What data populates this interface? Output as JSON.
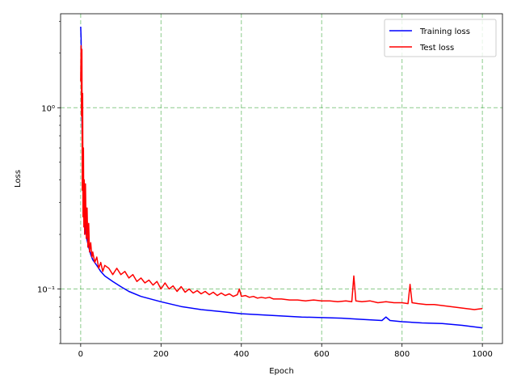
{
  "chart_data": {
    "type": "line",
    "title": "",
    "xlabel": "Epoch",
    "ylabel": "Loss",
    "xlim": [
      -50,
      1050
    ],
    "ylim": [
      0.05,
      3.3
    ],
    "yscale": "log",
    "x_ticks": [
      0,
      200,
      400,
      600,
      800,
      1000
    ],
    "x_tick_labels": [
      "0",
      "200",
      "400",
      "600",
      "800",
      "1000"
    ],
    "y_ticks": [
      0.1,
      1.0
    ],
    "y_tick_labels": [
      "10⁻¹",
      "10⁰"
    ],
    "grid": true,
    "grid_color": "#2ca02c",
    "legend_position": "top-right",
    "series": [
      {
        "name": "Training loss",
        "color": "#0000ff",
        "x": [
          0,
          1,
          2,
          3,
          4,
          5,
          6,
          8,
          10,
          12,
          15,
          20,
          25,
          30,
          40,
          50,
          60,
          80,
          100,
          120,
          150,
          200,
          250,
          300,
          350,
          400,
          450,
          500,
          550,
          600,
          650,
          700,
          750,
          760,
          770,
          800,
          850,
          900,
          950,
          1000
        ],
        "values": [
          2.8,
          2.4,
          1.4,
          0.9,
          0.6,
          0.45,
          0.35,
          0.28,
          0.24,
          0.21,
          0.19,
          0.17,
          0.155,
          0.145,
          0.135,
          0.125,
          0.118,
          0.11,
          0.103,
          0.097,
          0.091,
          0.085,
          0.08,
          0.077,
          0.075,
          0.073,
          0.072,
          0.071,
          0.07,
          0.0695,
          0.069,
          0.068,
          0.067,
          0.07,
          0.067,
          0.066,
          0.065,
          0.0645,
          0.063,
          0.061
        ]
      },
      {
        "name": "Test loss",
        "color": "#ff0000",
        "x": [
          0,
          1,
          2,
          3,
          4,
          5,
          6,
          7,
          8,
          9,
          10,
          12,
          14,
          16,
          18,
          20,
          22,
          25,
          28,
          30,
          35,
          40,
          45,
          50,
          55,
          60,
          70,
          80,
          90,
          100,
          110,
          120,
          130,
          140,
          150,
          160,
          170,
          180,
          190,
          200,
          210,
          220,
          230,
          240,
          250,
          260,
          270,
          280,
          290,
          300,
          310,
          320,
          330,
          340,
          350,
          360,
          370,
          380,
          390,
          395,
          400,
          410,
          420,
          430,
          440,
          450,
          460,
          470,
          480,
          500,
          520,
          540,
          560,
          580,
          600,
          620,
          640,
          660,
          675,
          680,
          685,
          700,
          720,
          740,
          760,
          780,
          800,
          815,
          820,
          825,
          840,
          860,
          880,
          900,
          920,
          940,
          960,
          980,
          1000
        ],
        "values": [
          1.4,
          2.2,
          0.9,
          2.1,
          0.35,
          1.2,
          0.25,
          0.6,
          0.22,
          0.4,
          0.2,
          0.38,
          0.19,
          0.28,
          0.17,
          0.23,
          0.16,
          0.18,
          0.15,
          0.16,
          0.14,
          0.15,
          0.13,
          0.14,
          0.125,
          0.135,
          0.13,
          0.12,
          0.13,
          0.12,
          0.125,
          0.115,
          0.12,
          0.11,
          0.115,
          0.108,
          0.112,
          0.105,
          0.11,
          0.1,
          0.108,
          0.1,
          0.104,
          0.097,
          0.103,
          0.096,
          0.1,
          0.095,
          0.098,
          0.094,
          0.097,
          0.093,
          0.096,
          0.092,
          0.095,
          0.092,
          0.094,
          0.091,
          0.093,
          0.1,
          0.091,
          0.092,
          0.09,
          0.091,
          0.089,
          0.09,
          0.089,
          0.09,
          0.088,
          0.088,
          0.087,
          0.087,
          0.086,
          0.087,
          0.086,
          0.086,
          0.085,
          0.086,
          0.085,
          0.118,
          0.086,
          0.085,
          0.086,
          0.084,
          0.085,
          0.084,
          0.084,
          0.083,
          0.106,
          0.084,
          0.083,
          0.082,
          0.082,
          0.081,
          0.08,
          0.079,
          0.078,
          0.077,
          0.078
        ]
      }
    ]
  }
}
